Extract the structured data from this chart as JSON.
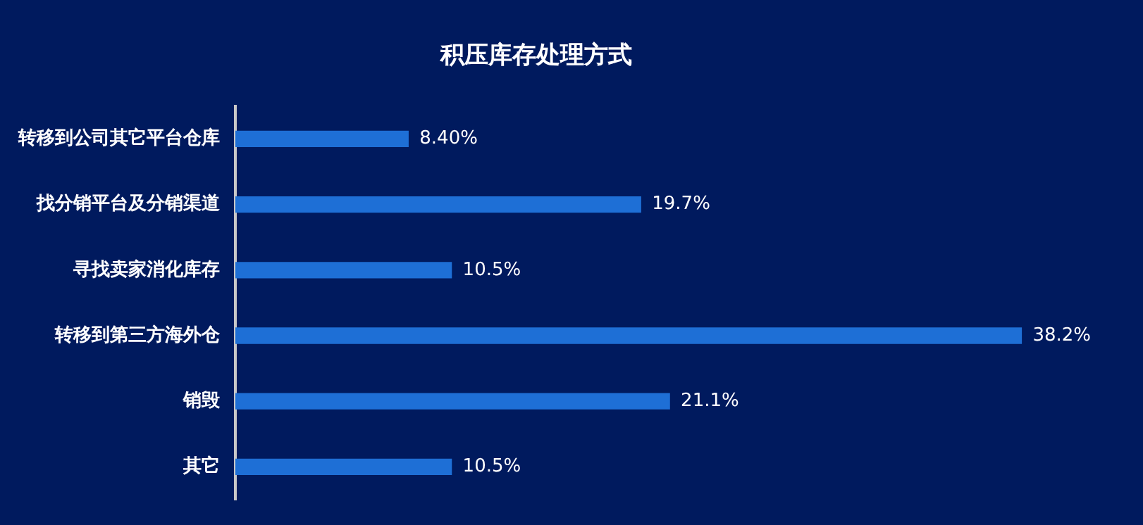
{
  "chart_data": {
    "type": "bar",
    "title": "积压库存处理方式",
    "orientation": "horizontal",
    "categories": [
      "转移到公司其它平台仓库",
      "找分销平台及分销渠道",
      "寻找卖家消化库存",
      "转移到第三方海外仓",
      "销毁",
      "其它"
    ],
    "values": [
      8.4,
      19.7,
      10.5,
      38.2,
      21.1,
      10.5
    ],
    "value_labels": [
      "8.40%",
      "19.7%",
      "10.5%",
      "38.2%",
      "21.1%",
      "10.5%"
    ],
    "color": "#1e6fd6",
    "grid": false,
    "legend": false,
    "tick_labels": "y"
  }
}
